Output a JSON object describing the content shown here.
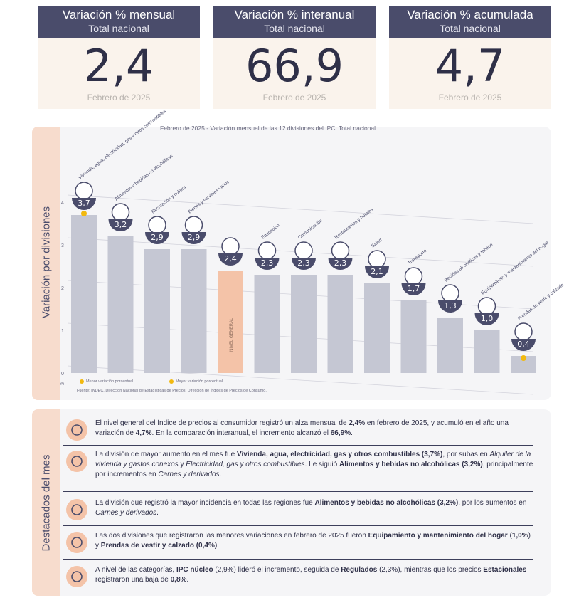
{
  "kpis": [
    {
      "title": "Variación % mensual",
      "subtitle": "Total nacional",
      "value": "2,4",
      "date": "Febrero de 2025"
    },
    {
      "title": "Variación % interanual",
      "subtitle": "Total nacional",
      "value": "66,9",
      "date": "Febrero de 2025"
    },
    {
      "title": "Variación % acumulada",
      "subtitle": "Total nacional",
      "value": "4,7",
      "date": "Febrero de 2025"
    }
  ],
  "chart_side_label": "Variación por divisiones",
  "chart_data": {
    "type": "bar",
    "title": "Febrero de 2025 - Variación mensual de las 12 divisiones del IPC. Total nacional",
    "categories": [
      "Vivienda, agua, electricidad, gas y otros combustibles",
      "Alimentos y bebidas no alcohólicas",
      "Recreación y cultura",
      "Bienes y servicios varios",
      "Nivel general",
      "Educación",
      "Comunicación",
      "Restaurantes y hoteles",
      "Salud",
      "Transporte",
      "Bebidas alcohólicas y tabaco",
      "Equipamiento y mantenimiento del hogar",
      "Prendas de vestir y calzado"
    ],
    "values": [
      3.7,
      3.2,
      2.9,
      2.9,
      2.4,
      2.3,
      2.3,
      2.3,
      2.1,
      1.7,
      1.3,
      1.0,
      0.4
    ],
    "value_labels": [
      "3,7",
      "3,2",
      "2,9",
      "2,9",
      "2,4",
      "2,3",
      "2,3",
      "2,3",
      "2,1",
      "1,7",
      "1,3",
      "1,0",
      "0,4"
    ],
    "bar_labels": [
      "Vivienda, agua, electricidad, gas y otros combustibles",
      "Alimentos y bebidas no alcohólicas",
      "Recreación y cultura",
      "Bienes y servicios varios",
      "",
      "Educación",
      "Comunicación",
      "Restaurantes y hoteles",
      "Salud",
      "Transporte",
      "Bebidas alcohólicas y tabaco",
      "Equipamiento y mantenimiento del hogar",
      "Prendas de vestir y calzado"
    ],
    "general_label": "NIVEL GENERAL",
    "highlight_index": 4,
    "ylim": [
      0,
      4
    ],
    "yticks": [
      "0",
      "1",
      "2",
      "3",
      "4"
    ],
    "yunit": "%",
    "grid": true,
    "colors": {
      "bar": "#c5c7d3",
      "general": "#f4c3a8",
      "badge": "#4a4c6b",
      "dot": "#f2b90f"
    },
    "max_dot_index": 0,
    "min_dot_index": 12,
    "legend": [
      "Menor variación porcentual",
      "Mayor variación porcentual"
    ]
  },
  "source": "Fuente: INDEC, Dirección Nacional de Estadísticas de Precios. Dirección de Índices de Precios de Consumo.",
  "highlights_side_label": "Destacados del mes",
  "highlights": [
    {
      "icon": "shopping-basket-icon",
      "parts": [
        {
          "t": "El nivel general del Índice de precios al consumidor registró un alza mensual de ",
          "s": "n"
        },
        {
          "t": "2,4%",
          "s": "b"
        },
        {
          "t": " en febrero de 2025, y acumuló en el año una variación de ",
          "s": "n"
        },
        {
          "t": "4,7%",
          "s": "b"
        },
        {
          "t": ". En la comparación interanual, el incremento alcanzó el ",
          "s": "n"
        },
        {
          "t": "66,9%",
          "s": "b"
        },
        {
          "t": ".",
          "s": "n"
        }
      ]
    },
    {
      "icon": "utilities-icon",
      "parts": [
        {
          "t": "La división de mayor aumento en el mes fue ",
          "s": "n"
        },
        {
          "t": "Vivienda, agua, electricidad, gas y otros combustibles (3,7%)",
          "s": "b"
        },
        {
          "t": ", por subas en ",
          "s": "n"
        },
        {
          "t": "Alquiler de la vivienda y gastos conexos",
          "s": "i"
        },
        {
          "t": " y ",
          "s": "n"
        },
        {
          "t": "Electricidad, gas y otros combustibles",
          "s": "i"
        },
        {
          "t": ". Le siguió ",
          "s": "n"
        },
        {
          "t": "Alimentos y bebidas no alcohólicas (3,2%)",
          "s": "b"
        },
        {
          "t": ", principalmente por incrementos en ",
          "s": "n"
        },
        {
          "t": "Carnes y derivados",
          "s": "i"
        },
        {
          "t": ".",
          "s": "n"
        }
      ]
    },
    {
      "icon": "food-icon",
      "parts": [
        {
          "t": "La división que registró la mayor incidencia en todas las regiones fue ",
          "s": "n"
        },
        {
          "t": "Alimentos y bebidas no alcohólicas (3,2%)",
          "s": "b"
        },
        {
          "t": ", por los aumentos en ",
          "s": "n"
        },
        {
          "t": "Carnes y derivados",
          "s": "i"
        },
        {
          "t": ".",
          "s": "n"
        }
      ]
    },
    {
      "icon": "home-appliance-icon",
      "parts": [
        {
          "t": "Las dos divisiones que registraron las menores variaciones en febrero de 2025 fueron ",
          "s": "n"
        },
        {
          "t": "Equipamiento y mantenimiento del hogar",
          "s": "b"
        },
        {
          "t": " (",
          "s": "n"
        },
        {
          "t": "1,0%",
          "s": "b"
        },
        {
          "t": ") y ",
          "s": "n"
        },
        {
          "t": "Prendas de vestir y calzado (0,4%)",
          "s": "b"
        },
        {
          "t": ".",
          "s": "n"
        }
      ]
    },
    {
      "icon": "tags-icon",
      "parts": [
        {
          "t": "A nivel de las categorías, ",
          "s": "n"
        },
        {
          "t": "IPC núcleo",
          "s": "b"
        },
        {
          "t": " (2,9%) lideró el incremento, seguida de ",
          "s": "n"
        },
        {
          "t": "Regulados",
          "s": "b"
        },
        {
          "t": " (2,3%), mientras que los precios ",
          "s": "n"
        },
        {
          "t": "Estacionales",
          "s": "b"
        },
        {
          "t": " registraron una baja de ",
          "s": "n"
        },
        {
          "t": "0,8%",
          "s": "b"
        },
        {
          "t": ".",
          "s": "n"
        }
      ]
    }
  ]
}
